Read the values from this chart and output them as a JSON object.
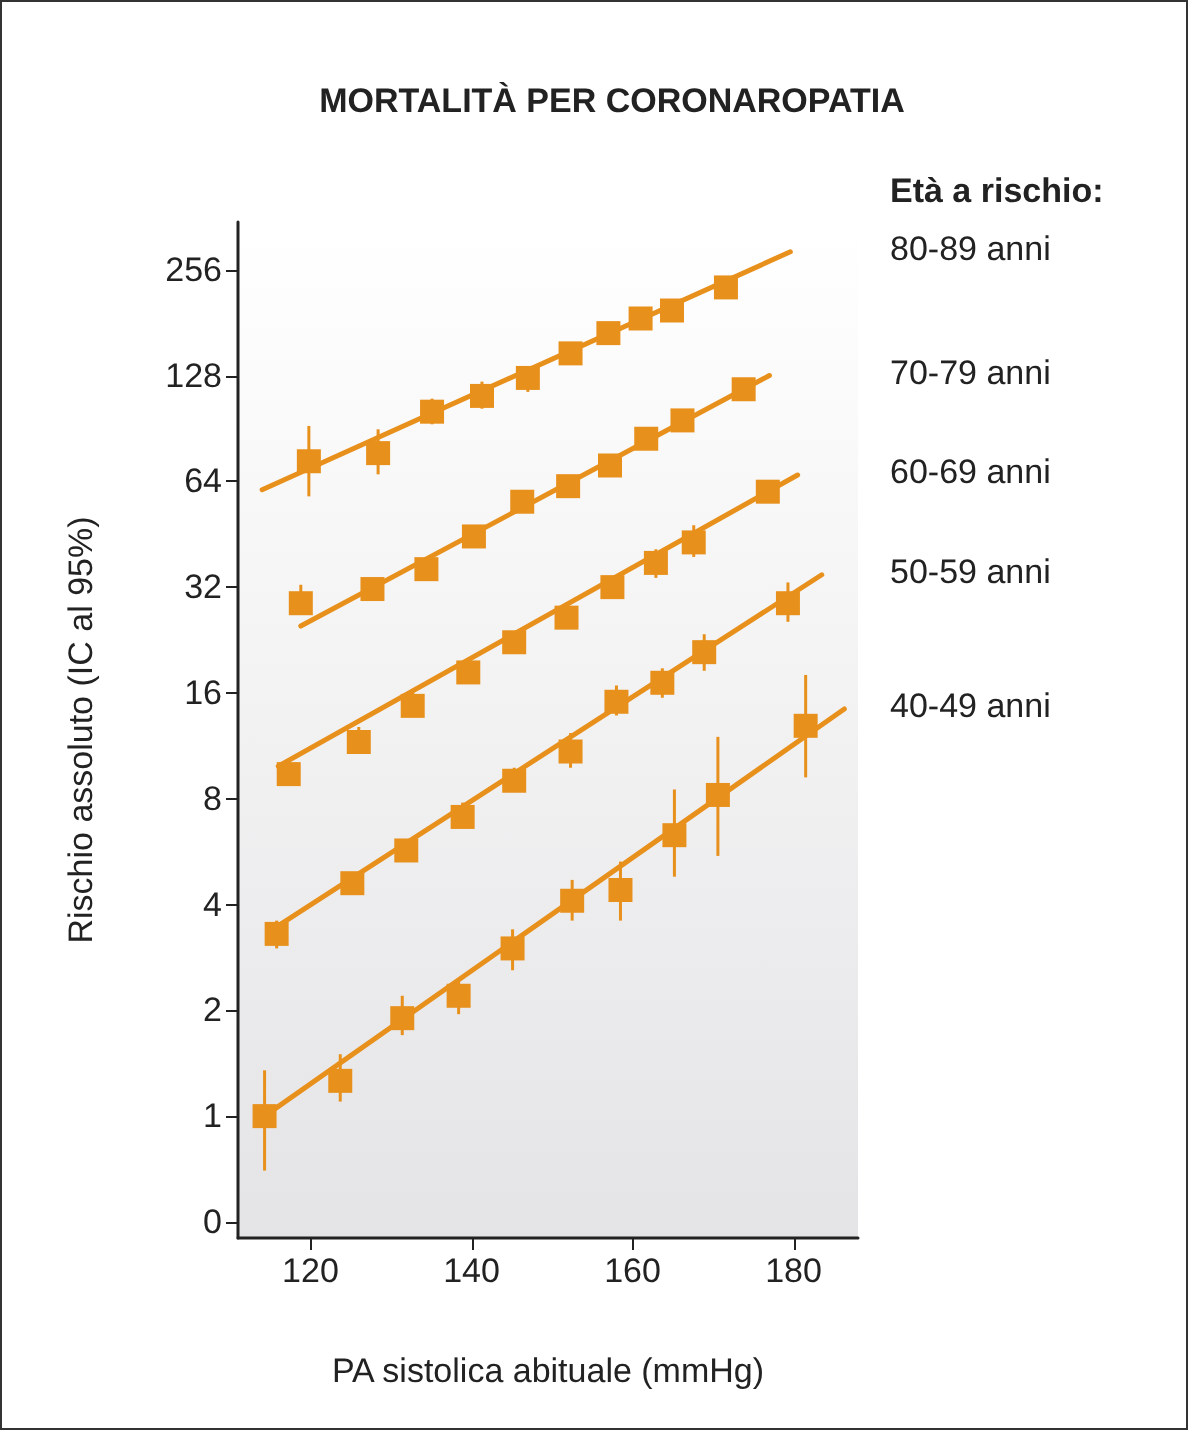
{
  "chart_data": {
    "type": "scatter",
    "title": "MORTALITÀ PER CORONAROPATIA",
    "xlabel": "PA sistolica abituale (mmHg)",
    "ylabel": "Rischio assoluto (IC al 95%)",
    "legend_title": "Età a rischio:",
    "log": "y",
    "xlim": [
      111,
      188
    ],
    "xticks": [
      120,
      140,
      160,
      180
    ],
    "ylim": [
      0.45,
      350
    ],
    "yticks": [
      {
        "value": 0.5,
        "label": "0"
      },
      1,
      2,
      4,
      8,
      16,
      32,
      64,
      128,
      256
    ],
    "grid": false,
    "series": [
      {
        "type": "scatter",
        "color": "#e8901c",
        "marker": "square",
        "x": [
          119.8,
          128.4,
          135.1,
          141.3,
          147.0,
          152.3,
          157.0,
          161.0,
          164.9,
          171.6
        ],
        "values": [
          73,
          77,
          101,
          112,
          126,
          148,
          169,
          186,
          196,
          228
        ],
        "errors": [
          [
            58,
            92
          ],
          [
            67,
            90
          ],
          [
            93,
            110
          ],
          [
            103,
            123
          ],
          [
            115,
            135
          ],
          [
            140,
            155
          ],
          [
            160,
            180
          ],
          null,
          [
            185,
            205
          ],
          null
        ]
      },
      {
        "type": "line",
        "name": "80-89 anni",
        "color": "#e8901c",
        "marker": "none",
        "line_style": "solid",
        "x": [
          114,
          179.6
        ],
        "values": [
          60.6,
          288
        ]
      },
      {
        "type": "scatter",
        "color": "#e8901c",
        "marker": "square",
        "x": [
          118.8,
          127.7,
          134.4,
          140.3,
          146.3,
          152.0,
          157.2,
          161.7,
          166.2,
          173.8
        ],
        "values": [
          28.8,
          31.6,
          36,
          44.6,
          56,
          62,
          71,
          84.6,
          95.4,
          117
        ],
        "errors": [
          [
            27,
            32.5
          ],
          [
            30,
            34
          ],
          [
            33.5,
            38.5
          ],
          [
            42,
            46.5
          ],
          [
            52,
            60
          ],
          [
            58,
            66
          ],
          [
            67,
            75
          ],
          null,
          [
            91,
            100
          ],
          [
            112,
            122
          ]
        ]
      },
      {
        "type": "line",
        "name": "70-79 anni",
        "color": "#e8901c",
        "marker": "none",
        "line_style": "solid",
        "x": [
          118.8,
          177
        ],
        "values": [
          24.8,
          128
        ]
      },
      {
        "type": "scatter",
        "color": "#e8901c",
        "marker": "square",
        "x": [
          117.3,
          126.0,
          132.7,
          139.6,
          145.3,
          151.8,
          157.5,
          162.9,
          167.6,
          176.8
        ],
        "values": [
          9.4,
          11.6,
          14.7,
          18.3,
          22.3,
          26.2,
          32,
          37.5,
          42.9,
          59.8
        ],
        "errors": [
          [
            8.7,
            10.2
          ],
          [
            10.8,
            12.8
          ],
          [
            13.7,
            16.3
          ],
          [
            17.6,
            19
          ],
          null,
          [
            24.5,
            28
          ],
          [
            30.5,
            33.5
          ],
          [
            34,
            41
          ],
          [
            39,
            48
          ],
          null
        ]
      },
      {
        "type": "line",
        "name": "60-69 anni",
        "color": "#e8901c",
        "marker": "none",
        "line_style": "solid",
        "x": [
          116,
          180.5
        ],
        "values": [
          9.9,
          66.7
        ]
      },
      {
        "type": "scatter",
        "color": "#e8901c",
        "marker": "square",
        "x": [
          115.8,
          125.2,
          131.9,
          138.9,
          145.3,
          152.3,
          158.0,
          163.7,
          168.9,
          179.3
        ],
        "values": [
          3.3,
          4.6,
          5.7,
          7.1,
          9.0,
          10.9,
          15.1,
          17.1,
          20.9,
          28.8
        ],
        "errors": [
          [
            3.0,
            3.6
          ],
          [
            4.3,
            4.9
          ],
          [
            5.3,
            6.1
          ],
          [
            6.6,
            7.8
          ],
          [
            8.4,
            9.8
          ],
          [
            9.8,
            12.3
          ],
          [
            13.8,
            16.8
          ],
          [
            15.5,
            18.8
          ],
          [
            18.5,
            23.5
          ],
          [
            25.5,
            33
          ]
        ]
      },
      {
        "type": "line",
        "name": "50-59 anni",
        "color": "#e8901c",
        "marker": "none",
        "line_style": "solid",
        "x": [
          115.3,
          183.5
        ],
        "values": [
          3.4,
          34.7
        ]
      },
      {
        "type": "scatter",
        "color": "#e8901c",
        "marker": "square",
        "x": [
          114.3,
          123.7,
          131.4,
          138.4,
          145.1,
          152.5,
          158.5,
          165.2,
          170.6,
          181.5
        ],
        "values": [
          1,
          1.26,
          1.9,
          2.2,
          3.0,
          4.1,
          4.4,
          6.3,
          8.2,
          12.9
        ],
        "errors": [
          [
            0.7,
            1.35
          ],
          [
            1.1,
            1.5
          ],
          [
            1.7,
            2.2
          ],
          [
            1.95,
            2.45
          ],
          [
            2.6,
            3.4
          ],
          [
            3.6,
            4.7
          ],
          [
            3.6,
            5.3
          ],
          [
            4.8,
            8.5
          ],
          [
            5.5,
            12
          ],
          [
            9.2,
            18
          ]
        ]
      },
      {
        "type": "line",
        "name": "40-49 anni",
        "color": "#e8901c",
        "marker": "none",
        "line_style": "solid",
        "x": [
          114.3,
          186.3
        ],
        "values": [
          1,
          14.4
        ]
      }
    ]
  }
}
